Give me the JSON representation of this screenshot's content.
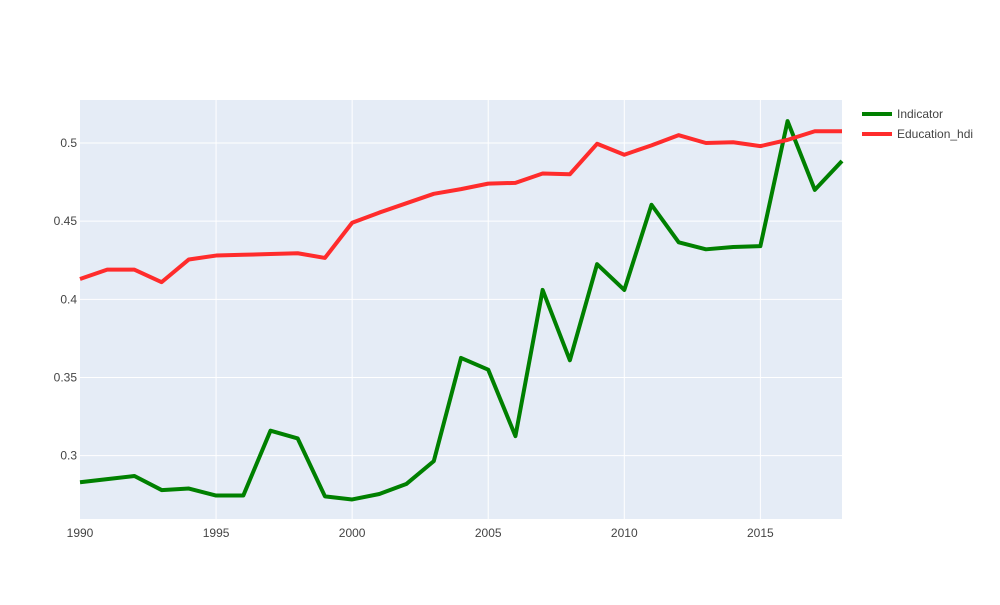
{
  "chart_data": {
    "type": "line",
    "title": "",
    "xlabel": "",
    "ylabel": "",
    "x": [
      1990,
      1991,
      1992,
      1993,
      1994,
      1995,
      1996,
      1997,
      1998,
      1999,
      2000,
      2001,
      2002,
      2003,
      2004,
      2005,
      2006,
      2007,
      2008,
      2009,
      2010,
      2011,
      2012,
      2013,
      2014,
      2015,
      2016,
      2017,
      2018
    ],
    "xlim": [
      1990,
      2018
    ],
    "ylim": [
      0.2595,
      0.5275
    ],
    "x_ticks": [
      1990,
      1995,
      2000,
      2005,
      2010,
      2015
    ],
    "x_tick_labels": [
      "1990",
      "1995",
      "2000",
      "2005",
      "2010",
      "2015"
    ],
    "y_ticks": [
      0.3,
      0.35,
      0.4,
      0.45,
      0.5
    ],
    "y_tick_labels": [
      "0.3",
      "0.35",
      "0.4",
      "0.45",
      "0.5"
    ],
    "grid": true,
    "legend_position": "top-right",
    "background_color": "#e5ecf6",
    "series": [
      {
        "name": "Indicator",
        "color": "#008000",
        "values": [
          0.283,
          0.285,
          0.287,
          0.278,
          0.279,
          0.2745,
          0.2745,
          0.316,
          0.311,
          0.274,
          0.272,
          0.2755,
          0.282,
          0.2965,
          0.3625,
          0.355,
          0.3125,
          0.406,
          0.361,
          0.4225,
          0.406,
          0.4605,
          0.4365,
          0.432,
          0.4335,
          0.434,
          0.514,
          0.47,
          0.4885
        ]
      },
      {
        "name": "Education_hdi",
        "color": "#ff2c2c",
        "values": [
          0.413,
          0.419,
          0.419,
          0.411,
          0.4255,
          0.428,
          0.4285,
          0.429,
          0.4295,
          0.4265,
          0.449,
          0.4555,
          0.4615,
          0.4675,
          0.4705,
          0.474,
          0.4745,
          0.4805,
          0.48,
          0.4995,
          0.4925,
          0.4985,
          0.505,
          0.5,
          0.5005,
          0.498,
          0.502,
          0.5075,
          0.5075
        ]
      }
    ]
  }
}
